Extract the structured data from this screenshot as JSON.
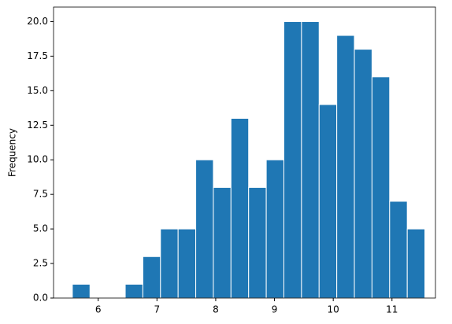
{
  "chart_data": {
    "type": "histogram",
    "y_label": "Frequency",
    "color": "#1f77b4",
    "bins": [
      5.56,
      5.86,
      6.16,
      6.46,
      6.76,
      7.06,
      7.36,
      7.66,
      7.96,
      8.26,
      8.56,
      8.86,
      9.16,
      9.46,
      9.76,
      10.06,
      10.36,
      10.66,
      10.96,
      11.26,
      11.56
    ],
    "values": [
      1,
      0,
      0,
      1,
      3,
      5,
      5,
      10,
      8,
      13,
      8,
      10,
      20,
      20,
      14,
      19,
      18,
      16,
      7,
      5
    ],
    "xlim": [
      5.24,
      11.74
    ],
    "xticks": [
      6,
      7,
      8,
      9,
      10,
      11
    ],
    "ylim": [
      0,
      21.05
    ],
    "yticks": [
      {
        "value": 0,
        "label": "0.0"
      },
      {
        "value": 2.5,
        "label": "2.5"
      },
      {
        "value": 5,
        "label": "5.0"
      },
      {
        "value": 7.5,
        "label": "7.5"
      },
      {
        "value": 10,
        "label": "10.0"
      },
      {
        "value": 12.5,
        "label": "12.5"
      },
      {
        "value": 15,
        "label": "15.0"
      },
      {
        "value": 17.5,
        "label": "17.5"
      },
      {
        "value": 20,
        "label": "20.0"
      }
    ]
  }
}
